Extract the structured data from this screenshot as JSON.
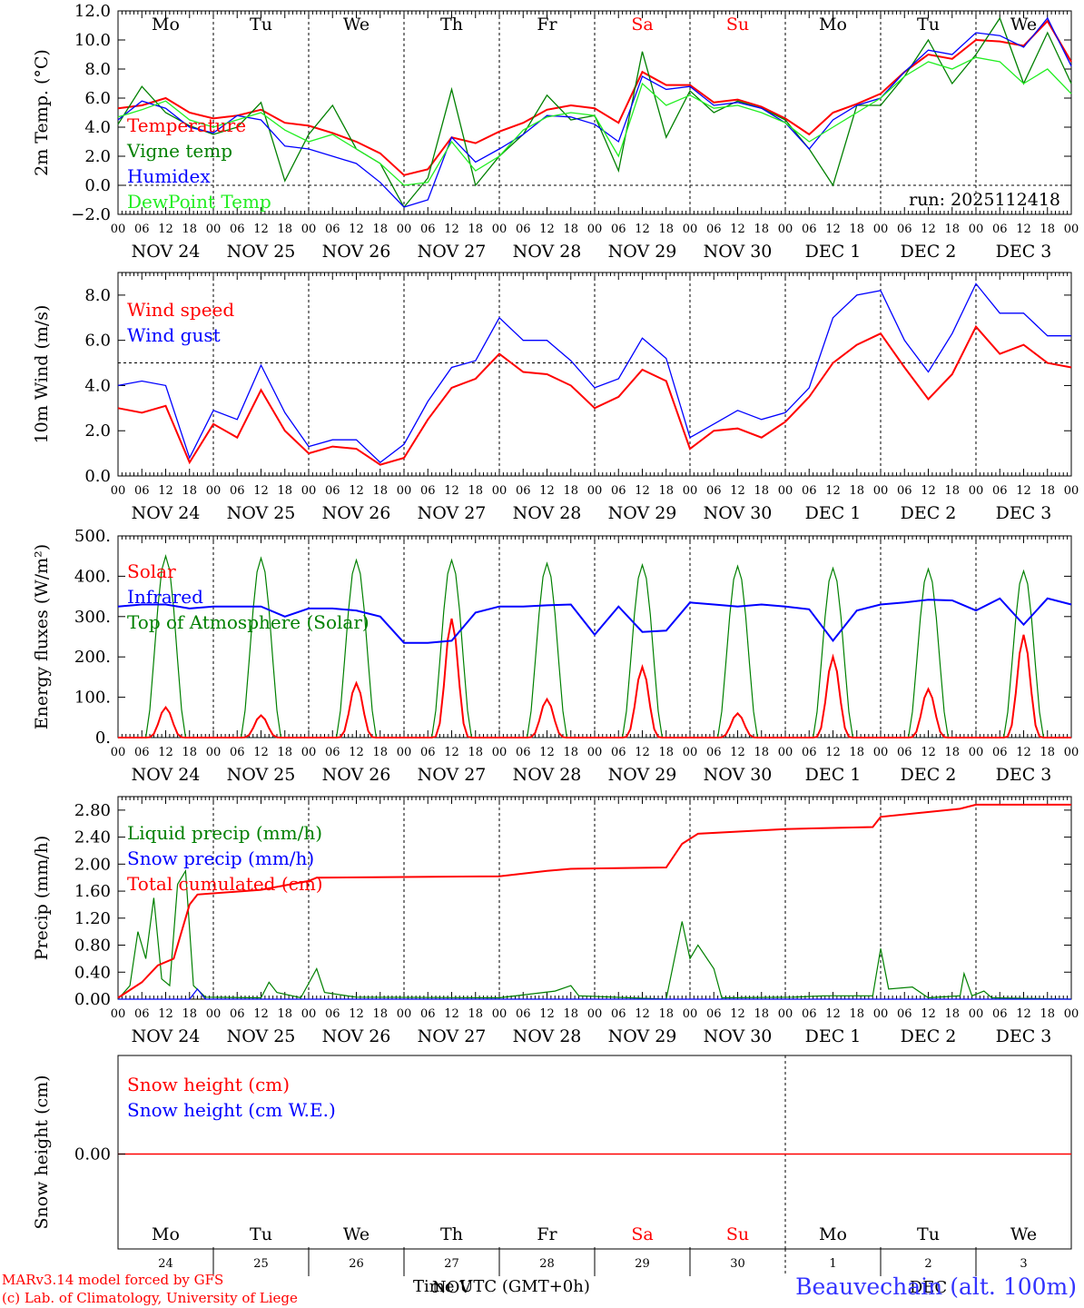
{
  "footer": {
    "model": "MARv3.14 model forced by GFS",
    "lab": "(c) Lab. of Climatology, University of Liege",
    "time_label": "Time UTC (GMT+0h)",
    "station": "Beauvechain (alt. 100m)"
  },
  "colors": {
    "red": "#ff0000",
    "blue": "#0000ff",
    "green": "#008000",
    "lightgreen": "#22ee22",
    "weekend": "#ff0000"
  },
  "chart_data": [
    {
      "type": "line",
      "id": "temperature",
      "ylabel": "2m Temp. (°C)",
      "ylim": [
        -2,
        12
      ],
      "yticks": [
        "−2.0",
        "0.0",
        "2.0",
        "4.0",
        "6.0",
        "8.0",
        "10.0",
        "12.0"
      ],
      "annotation": "run: 2025112418",
      "reference_line": 0,
      "day_labels": [
        "Mo",
        "Tu",
        "We",
        "Th",
        "Fr",
        "Sa",
        "Su",
        "Mo",
        "Tu",
        "We"
      ],
      "hour_ticks": [
        "00",
        "06",
        "12",
        "18"
      ],
      "date_labels": [
        "NOV 24",
        "NOV 25",
        "NOV 26",
        "NOV 27",
        "NOV 28",
        "NOV 29",
        "NOV 30",
        "DEC  1",
        "DEC  2",
        "DEC  3"
      ],
      "x_hours": [
        0,
        6,
        12,
        18,
        24,
        30,
        36,
        42,
        48,
        54,
        60,
        66,
        72,
        78,
        84,
        90,
        96,
        102,
        108,
        114,
        120,
        126,
        132,
        138,
        144,
        150,
        156,
        162,
        168,
        174,
        180,
        186,
        192,
        198,
        204,
        210,
        216,
        222,
        228,
        234,
        240
      ],
      "series": [
        {
          "name": "Temperature",
          "color": "red",
          "values": [
            5.3,
            5.5,
            6.0,
            5.0,
            4.6,
            4.8,
            5.2,
            4.3,
            4.1,
            3.6,
            3.0,
            2.2,
            0.7,
            1.1,
            3.3,
            2.9,
            3.7,
            4.3,
            5.2,
            5.5,
            5.3,
            4.3,
            7.8,
            6.9,
            6.9,
            5.7,
            5.9,
            5.4,
            4.6,
            3.5,
            5.0,
            5.6,
            6.3,
            7.8,
            9.0,
            8.7,
            10.0,
            9.9,
            9.6,
            11.3,
            8.5
          ]
        },
        {
          "name": "Vigne temp",
          "color": "green",
          "values": [
            4.2,
            6.8,
            5.0,
            4.1,
            3.5,
            4.0,
            5.7,
            0.3,
            3.5,
            5.5,
            2.5,
            1.5,
            -1.5,
            0.5,
            6.6,
            0.0,
            2.0,
            3.5,
            6.2,
            4.5,
            4.8,
            1.0,
            9.2,
            3.3,
            6.5,
            5.0,
            5.8,
            5.3,
            4.5,
            2.5,
            0.0,
            5.5,
            5.5,
            7.5,
            10.0,
            7.0,
            9.0,
            11.5,
            7.0,
            10.5,
            7.0
          ]
        },
        {
          "name": "Humidex",
          "color": "blue",
          "values": [
            4.5,
            5.8,
            5.3,
            4.0,
            3.6,
            4.8,
            4.5,
            2.7,
            2.5,
            2.0,
            1.5,
            0.2,
            -1.5,
            -1.0,
            3.3,
            1.6,
            2.5,
            3.5,
            4.8,
            4.7,
            4.2,
            3.0,
            7.5,
            6.6,
            6.8,
            5.5,
            5.7,
            5.3,
            4.3,
            2.5,
            4.5,
            5.5,
            6.0,
            7.8,
            9.3,
            9.0,
            10.5,
            10.3,
            9.5,
            11.5,
            8.2
          ]
        },
        {
          "name": "DewPoint Temp",
          "color": "lightgreen",
          "values": [
            4.7,
            5.2,
            5.8,
            4.5,
            4.0,
            4.5,
            5.0,
            3.8,
            3.0,
            3.5,
            2.5,
            1.5,
            0.0,
            0.2,
            3.0,
            1.0,
            2.0,
            3.8,
            4.7,
            5.0,
            4.8,
            2.0,
            7.0,
            5.5,
            6.2,
            5.3,
            5.5,
            5.0,
            4.3,
            3.0,
            4.0,
            5.0,
            6.0,
            7.5,
            8.5,
            8.0,
            8.8,
            8.5,
            7.0,
            8.0,
            6.3
          ]
        }
      ]
    },
    {
      "type": "line",
      "id": "wind",
      "ylabel": "10m Wind (m/s)",
      "ylim": [
        0,
        9.0
      ],
      "yticks": [
        "0.0",
        "2.0",
        "4.0",
        "6.0",
        "8.0"
      ],
      "reference_line": 5,
      "hour_ticks": [
        "00",
        "06",
        "12",
        "18"
      ],
      "date_labels": [
        "NOV 24",
        "NOV 25",
        "NOV 26",
        "NOV 27",
        "NOV 28",
        "NOV 29",
        "NOV 30",
        "DEC  1",
        "DEC  2",
        "DEC  3"
      ],
      "x_hours": [
        0,
        6,
        12,
        18,
        24,
        30,
        36,
        42,
        48,
        54,
        60,
        66,
        72,
        78,
        84,
        90,
        96,
        102,
        108,
        114,
        120,
        126,
        132,
        138,
        144,
        150,
        156,
        162,
        168,
        174,
        180,
        186,
        192,
        198,
        204,
        210,
        216,
        222,
        228,
        234,
        240
      ],
      "series": [
        {
          "name": "Wind speed",
          "color": "red",
          "values": [
            3.0,
            2.8,
            3.1,
            0.6,
            2.3,
            1.7,
            3.8,
            2.0,
            1.0,
            1.3,
            1.2,
            0.5,
            0.8,
            2.5,
            3.9,
            4.3,
            5.4,
            4.6,
            4.5,
            4.0,
            3.0,
            3.5,
            4.7,
            4.2,
            1.2,
            2.0,
            2.1,
            1.7,
            2.4,
            3.5,
            5.0,
            5.8,
            6.3,
            4.8,
            3.4,
            4.5,
            6.6,
            5.4,
            5.8,
            5.0,
            4.8
          ]
        },
        {
          "name": "Wind gust",
          "color": "blue",
          "values": [
            4.0,
            4.2,
            4.0,
            0.8,
            2.9,
            2.5,
            4.9,
            2.8,
            1.3,
            1.6,
            1.6,
            0.6,
            1.4,
            3.3,
            4.8,
            5.1,
            7.0,
            6.0,
            6.0,
            5.1,
            3.9,
            4.3,
            6.1,
            5.2,
            1.7,
            2.3,
            2.9,
            2.5,
            2.8,
            3.9,
            7.0,
            8.0,
            8.2,
            6.0,
            4.6,
            6.3,
            8.5,
            7.2,
            7.2,
            6.2,
            6.2
          ]
        }
      ]
    },
    {
      "type": "line",
      "id": "energy",
      "ylabel": "Energy fluxes (W/m²)",
      "ylim": [
        0,
        500
      ],
      "yticks": [
        "0.",
        "100.",
        "200.",
        "300.",
        "400.",
        "500."
      ],
      "hour_ticks": [
        "00",
        "06",
        "12",
        "18"
      ],
      "date_labels": [
        "NOV 24",
        "NOV 25",
        "NOV 26",
        "NOV 27",
        "NOV 28",
        "NOV 29",
        "NOV 30",
        "DEC  1",
        "DEC  2",
        "DEC  3"
      ],
      "series": [
        {
          "name": "Solar",
          "color": "red",
          "daily_peaks": [
            75,
            55,
            135,
            295,
            95,
            175,
            60,
            200,
            120,
            255
          ]
        },
        {
          "name": "Infrared",
          "color": "blue",
          "x_hours": [
            0,
            6,
            12,
            18,
            24,
            30,
            36,
            42,
            48,
            54,
            60,
            66,
            72,
            78,
            84,
            90,
            96,
            102,
            108,
            114,
            120,
            126,
            132,
            138,
            144,
            150,
            156,
            162,
            168,
            174,
            180,
            186,
            192,
            198,
            204,
            210,
            216,
            222,
            228,
            234,
            240
          ],
          "values": [
            325,
            330,
            330,
            320,
            325,
            325,
            325,
            300,
            320,
            320,
            315,
            300,
            235,
            235,
            240,
            310,
            325,
            325,
            328,
            330,
            255,
            325,
            262,
            265,
            335,
            330,
            325,
            330,
            325,
            318,
            240,
            315,
            330,
            335,
            342,
            340,
            315,
            345,
            280,
            345,
            330
          ]
        },
        {
          "name": "Top of Atmosphere (Solar)",
          "color": "green",
          "daily_peaks": [
            450,
            445,
            440,
            440,
            432,
            428,
            425,
            420,
            418,
            413
          ]
        }
      ]
    },
    {
      "type": "line",
      "id": "precip",
      "ylabel": "Precip (mm/h)",
      "ylim": [
        0,
        3.0
      ],
      "yticks": [
        "0.00",
        "0.40",
        "0.80",
        "1.20",
        "1.60",
        "2.00",
        "2.40",
        "2.80"
      ],
      "hour_ticks": [
        "00",
        "06",
        "12",
        "18"
      ],
      "date_labels": [
        "NOV 24",
        "NOV 25",
        "NOV 26",
        "NOV 27",
        "NOV 28",
        "NOV 29",
        "NOV 30",
        "DEC  1",
        "DEC  2",
        "DEC  3"
      ],
      "series": [
        {
          "name": "Liquid precip (mm/h)",
          "color": "green",
          "points": [
            [
              0,
              0
            ],
            [
              3,
              0.2
            ],
            [
              5,
              1.0
            ],
            [
              7,
              0.6
            ],
            [
              9,
              1.5
            ],
            [
              11,
              0.3
            ],
            [
              13,
              0.2
            ],
            [
              15,
              1.7
            ],
            [
              17,
              1.9
            ],
            [
              19,
              0.2
            ],
            [
              22,
              0.03
            ],
            [
              36,
              0.02
            ],
            [
              38,
              0.25
            ],
            [
              40,
              0.1
            ],
            [
              46,
              0.02
            ],
            [
              50,
              0.45
            ],
            [
              52,
              0.1
            ],
            [
              60,
              0.03
            ],
            [
              96,
              0.02
            ],
            [
              110,
              0.12
            ],
            [
              114,
              0.2
            ],
            [
              116,
              0.05
            ],
            [
              138,
              0
            ],
            [
              142,
              1.15
            ],
            [
              144,
              0.6
            ],
            [
              146,
              0.8
            ],
            [
              150,
              0.45
            ],
            [
              152,
              0.02
            ],
            [
              170,
              0.03
            ],
            [
              178,
              0.05
            ],
            [
              190,
              0.05
            ],
            [
              192,
              0.75
            ],
            [
              194,
              0.15
            ],
            [
              200,
              0.18
            ],
            [
              204,
              0.02
            ],
            [
              212,
              0.05
            ],
            [
              213,
              0.38
            ],
            [
              215,
              0.05
            ],
            [
              218,
              0.12
            ],
            [
              220,
              0.02
            ],
            [
              240,
              0
            ]
          ]
        },
        {
          "name": "Snow precip (mm/h)",
          "color": "blue",
          "points": [
            [
              0,
              0
            ],
            [
              18,
              0
            ],
            [
              20,
              0.15
            ],
            [
              22,
              0
            ],
            [
              240,
              0
            ]
          ]
        },
        {
          "name": "Total cumulated (cm)",
          "color": "red",
          "points": [
            [
              0,
              0.02
            ],
            [
              6,
              0.25
            ],
            [
              10,
              0.5
            ],
            [
              14,
              0.6
            ],
            [
              16,
              1.0
            ],
            [
              18,
              1.4
            ],
            [
              20,
              1.55
            ],
            [
              36,
              1.62
            ],
            [
              48,
              1.75
            ],
            [
              50,
              1.8
            ],
            [
              96,
              1.82
            ],
            [
              108,
              1.9
            ],
            [
              114,
              1.93
            ],
            [
              138,
              1.95
            ],
            [
              142,
              2.3
            ],
            [
              146,
              2.45
            ],
            [
              168,
              2.52
            ],
            [
              190,
              2.55
            ],
            [
              192,
              2.7
            ],
            [
              212,
              2.82
            ],
            [
              216,
              2.88
            ],
            [
              240,
              2.88
            ]
          ]
        }
      ]
    },
    {
      "type": "line",
      "id": "snow",
      "ylabel": "Snow height (cm)",
      "ytick": "0.00",
      "series": [
        {
          "name": "Snow height (cm)",
          "color": "red",
          "value": 0
        },
        {
          "name": "Snow height (cm W.E.)",
          "color": "blue",
          "value": 0
        }
      ],
      "day_labels": [
        "Mo",
        "Tu",
        "We",
        "Th",
        "Fr",
        "Sa",
        "Su",
        "Mo",
        "Tu",
        "We"
      ],
      "day_numbers": [
        "24",
        "25",
        "26",
        "27",
        "28",
        "29",
        "30",
        "1",
        "2",
        "3"
      ],
      "month_labels": [
        "NOV",
        "DEC"
      ]
    }
  ]
}
